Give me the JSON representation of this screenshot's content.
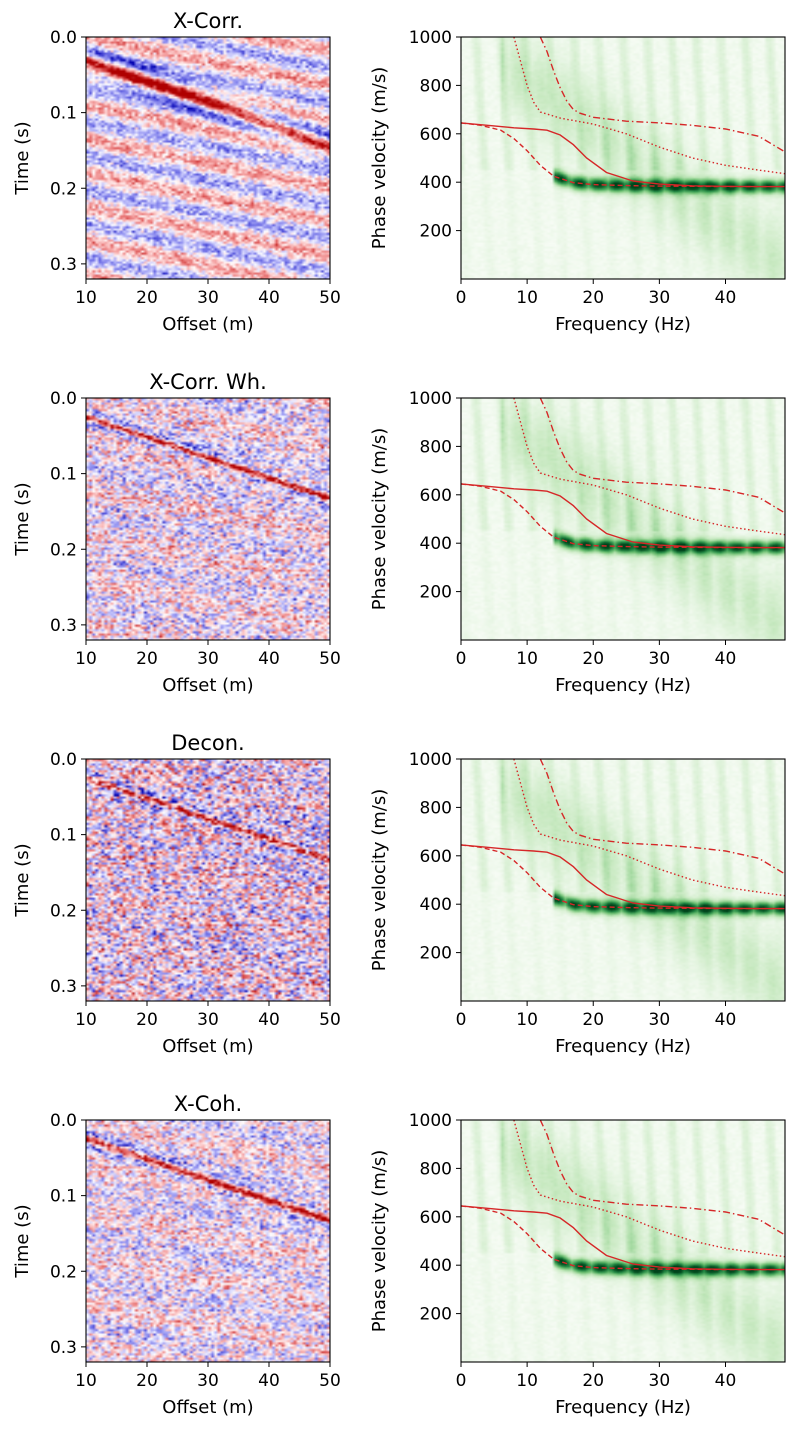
{
  "chart_data": [
    {
      "type": "heatmap",
      "title": "X-Corr.",
      "xlabel": "Offset (m)",
      "ylabel": "Time (s)",
      "xlim": [
        10,
        50
      ],
      "ylim": [
        0.32,
        0.0
      ],
      "xticks": [
        "10",
        "20",
        "30",
        "40",
        "50"
      ],
      "yticks": [
        "0.0",
        "0.1",
        "0.2",
        "0.3"
      ],
      "colormap": "seismic",
      "noise_level": 0.45,
      "event": {
        "t0": 0.03,
        "slope_s_per_m": 0.00285,
        "amplitude": 1.0,
        "width_s": 0.012
      },
      "ringing": {
        "spacing_s": 0.045,
        "amplitude": 0.45
      }
    },
    {
      "type": "heatmap",
      "title": "",
      "xlabel": "Frequency (Hz)",
      "ylabel": "Phase velocity (m/s)",
      "xlim": [
        0,
        49
      ],
      "ylim": [
        0,
        1000
      ],
      "xticks": [
        "0",
        "10",
        "20",
        "30",
        "40"
      ],
      "yticks": [
        "200",
        "400",
        "600",
        "800",
        "1000"
      ],
      "colormap": "Greens",
      "energy_peak": 1.0,
      "curves": [
        {
          "style": "solid",
          "color": "#d62728",
          "x": [
            0,
            4,
            8,
            11,
            13,
            15,
            17,
            19,
            22,
            26,
            30,
            35,
            40,
            45,
            49
          ],
          "y": [
            645,
            635,
            625,
            620,
            615,
            595,
            555,
            500,
            440,
            405,
            392,
            385,
            383,
            382,
            382
          ]
        },
        {
          "style": "dashed",
          "color": "#d62728",
          "x": [
            0,
            3,
            6,
            8,
            10,
            12,
            14,
            17,
            20,
            25,
            30,
            35,
            40,
            45,
            49
          ],
          "y": [
            645,
            635,
            615,
            580,
            530,
            470,
            425,
            398,
            390,
            386,
            384,
            383,
            382,
            382,
            382
          ]
        },
        {
          "style": "dotted",
          "color": "#d62728",
          "x": [
            8,
            9,
            10,
            11,
            12,
            15,
            20,
            25,
            30,
            35,
            40,
            45,
            49
          ],
          "y": [
            1000,
            900,
            800,
            730,
            690,
            665,
            640,
            600,
            545,
            500,
            470,
            450,
            435
          ]
        },
        {
          "style": "dashdot",
          "color": "#d62728",
          "x": [
            12,
            13,
            14,
            15,
            16,
            17,
            18,
            20,
            25,
            30,
            35,
            40,
            45,
            49
          ],
          "y": [
            1000,
            940,
            860,
            790,
            735,
            700,
            685,
            668,
            652,
            645,
            635,
            620,
            590,
            525
          ]
        }
      ]
    },
    {
      "type": "heatmap",
      "title": "X-Corr. Wh.",
      "xlabel": "Offset (m)",
      "ylabel": "Time (s)",
      "xlim": [
        10,
        50
      ],
      "ylim": [
        0.32,
        0.0
      ],
      "xticks": [
        "10",
        "20",
        "30",
        "40",
        "50"
      ],
      "yticks": [
        "0.0",
        "0.1",
        "0.2",
        "0.3"
      ],
      "colormap": "seismic",
      "noise_level": 0.75,
      "event": {
        "t0": 0.025,
        "slope_s_per_m": 0.0027,
        "amplitude": 1.0,
        "width_s": 0.006
      },
      "ringing": {
        "spacing_s": 0.06,
        "amplitude": 0.15
      }
    },
    {
      "type": "heatmap",
      "title": "",
      "xlabel": "Frequency (Hz)",
      "ylabel": "Phase velocity (m/s)",
      "xlim": [
        0,
        49
      ],
      "ylim": [
        0,
        1000
      ],
      "xticks": [
        "0",
        "10",
        "20",
        "30",
        "40"
      ],
      "yticks": [
        "200",
        "400",
        "600",
        "800",
        "1000"
      ],
      "colormap": "Greens",
      "energy_peak": 1.0,
      "curves": [
        {
          "style": "solid",
          "color": "#d62728",
          "x": [
            0,
            4,
            8,
            11,
            13,
            15,
            17,
            19,
            22,
            26,
            30,
            35,
            40,
            45,
            49
          ],
          "y": [
            645,
            635,
            625,
            620,
            615,
            595,
            555,
            500,
            440,
            405,
            392,
            385,
            383,
            382,
            382
          ]
        },
        {
          "style": "dashed",
          "color": "#d62728",
          "x": [
            0,
            3,
            6,
            8,
            10,
            12,
            14,
            17,
            20,
            25,
            30,
            35,
            40,
            45,
            49
          ],
          "y": [
            645,
            635,
            615,
            580,
            530,
            470,
            425,
            398,
            390,
            386,
            384,
            383,
            382,
            382,
            382
          ]
        },
        {
          "style": "dotted",
          "color": "#d62728",
          "x": [
            8,
            9,
            10,
            11,
            12,
            15,
            20,
            25,
            30,
            35,
            40,
            45,
            49
          ],
          "y": [
            1000,
            900,
            800,
            730,
            690,
            665,
            640,
            600,
            545,
            500,
            470,
            450,
            435
          ]
        },
        {
          "style": "dashdot",
          "color": "#d62728",
          "x": [
            12,
            13,
            14,
            15,
            16,
            17,
            18,
            20,
            25,
            30,
            35,
            40,
            45,
            49
          ],
          "y": [
            1000,
            940,
            860,
            790,
            735,
            700,
            685,
            668,
            652,
            645,
            635,
            620,
            590,
            525
          ]
        }
      ]
    },
    {
      "type": "heatmap",
      "title": "Decon.",
      "xlabel": "Offset (m)",
      "ylabel": "Time (s)",
      "xlim": [
        10,
        50
      ],
      "ylim": [
        0.32,
        0.0
      ],
      "xticks": [
        "10",
        "20",
        "30",
        "40",
        "50"
      ],
      "yticks": [
        "0.0",
        "0.1",
        "0.2",
        "0.3"
      ],
      "colormap": "seismic",
      "noise_level": 0.95,
      "event": {
        "t0": 0.025,
        "slope_s_per_m": 0.0027,
        "amplitude": 0.8,
        "width_s": 0.006
      },
      "ringing": {
        "spacing_s": 0.06,
        "amplitude": 0.1
      }
    },
    {
      "type": "heatmap",
      "title": "",
      "xlabel": "Frequency (Hz)",
      "ylabel": "Phase velocity (m/s)",
      "xlim": [
        0,
        49
      ],
      "ylim": [
        0,
        1000
      ],
      "xticks": [
        "0",
        "10",
        "20",
        "30",
        "40"
      ],
      "yticks": [
        "200",
        "400",
        "600",
        "800",
        "1000"
      ],
      "colormap": "Greens",
      "energy_peak": 1.0,
      "curves": [
        {
          "style": "solid",
          "color": "#d62728",
          "x": [
            0,
            4,
            8,
            11,
            13,
            15,
            17,
            19,
            22,
            26,
            30,
            35,
            40,
            45,
            49
          ],
          "y": [
            645,
            635,
            625,
            620,
            615,
            595,
            555,
            500,
            440,
            405,
            392,
            385,
            383,
            382,
            382
          ]
        },
        {
          "style": "dashed",
          "color": "#d62728",
          "x": [
            0,
            3,
            6,
            8,
            10,
            12,
            14,
            17,
            20,
            25,
            30,
            35,
            40,
            45,
            49
          ],
          "y": [
            645,
            635,
            615,
            580,
            530,
            470,
            425,
            398,
            390,
            386,
            384,
            383,
            382,
            382,
            382
          ]
        },
        {
          "style": "dotted",
          "color": "#d62728",
          "x": [
            8,
            9,
            10,
            11,
            12,
            15,
            20,
            25,
            30,
            35,
            40,
            45,
            49
          ],
          "y": [
            1000,
            900,
            800,
            730,
            690,
            665,
            640,
            600,
            545,
            500,
            470,
            450,
            435
          ]
        },
        {
          "style": "dashdot",
          "color": "#d62728",
          "x": [
            12,
            13,
            14,
            15,
            16,
            17,
            18,
            20,
            25,
            30,
            35,
            40,
            45,
            49
          ],
          "y": [
            1000,
            940,
            860,
            790,
            735,
            700,
            685,
            668,
            652,
            645,
            635,
            620,
            590,
            525
          ]
        }
      ]
    },
    {
      "type": "heatmap",
      "title": "X-Coh.",
      "xlabel": "Offset (m)",
      "ylabel": "Time (s)",
      "xlim": [
        10,
        50
      ],
      "ylim": [
        0.32,
        0.0
      ],
      "xticks": [
        "10",
        "20",
        "30",
        "40",
        "50"
      ],
      "yticks": [
        "0.0",
        "0.1",
        "0.2",
        "0.3"
      ],
      "colormap": "seismic",
      "noise_level": 0.7,
      "event": {
        "t0": 0.025,
        "slope_s_per_m": 0.0027,
        "amplitude": 1.0,
        "width_s": 0.007
      },
      "ringing": {
        "spacing_s": 0.06,
        "amplitude": 0.15
      }
    },
    {
      "type": "heatmap",
      "title": "",
      "xlabel": "Frequency (Hz)",
      "ylabel": "Phase velocity (m/s)",
      "xlim": [
        0,
        49
      ],
      "ylim": [
        0,
        1000
      ],
      "xticks": [
        "0",
        "10",
        "20",
        "30",
        "40"
      ],
      "yticks": [
        "200",
        "400",
        "600",
        "800",
        "1000"
      ],
      "colormap": "Greens",
      "energy_peak": 1.0,
      "curves": [
        {
          "style": "solid",
          "color": "#d62728",
          "x": [
            0,
            4,
            8,
            11,
            13,
            15,
            17,
            19,
            22,
            26,
            30,
            35,
            40,
            45,
            49
          ],
          "y": [
            645,
            635,
            625,
            620,
            615,
            595,
            555,
            500,
            440,
            405,
            392,
            385,
            383,
            382,
            382
          ]
        },
        {
          "style": "dashed",
          "color": "#d62728",
          "x": [
            0,
            3,
            6,
            8,
            10,
            12,
            14,
            17,
            20,
            25,
            30,
            35,
            40,
            45,
            49
          ],
          "y": [
            645,
            635,
            615,
            580,
            530,
            470,
            425,
            398,
            390,
            386,
            384,
            383,
            382,
            382,
            382
          ]
        },
        {
          "style": "dotted",
          "color": "#d62728",
          "x": [
            8,
            9,
            10,
            11,
            12,
            15,
            20,
            25,
            30,
            35,
            40,
            45,
            49
          ],
          "y": [
            1000,
            900,
            800,
            730,
            690,
            665,
            640,
            600,
            545,
            500,
            470,
            450,
            435
          ]
        },
        {
          "style": "dashdot",
          "color": "#d62728",
          "x": [
            12,
            13,
            14,
            15,
            16,
            17,
            18,
            20,
            25,
            30,
            35,
            40,
            45,
            49
          ],
          "y": [
            1000,
            940,
            860,
            790,
            735,
            700,
            685,
            668,
            652,
            645,
            635,
            620,
            590,
            525
          ]
        }
      ]
    }
  ]
}
